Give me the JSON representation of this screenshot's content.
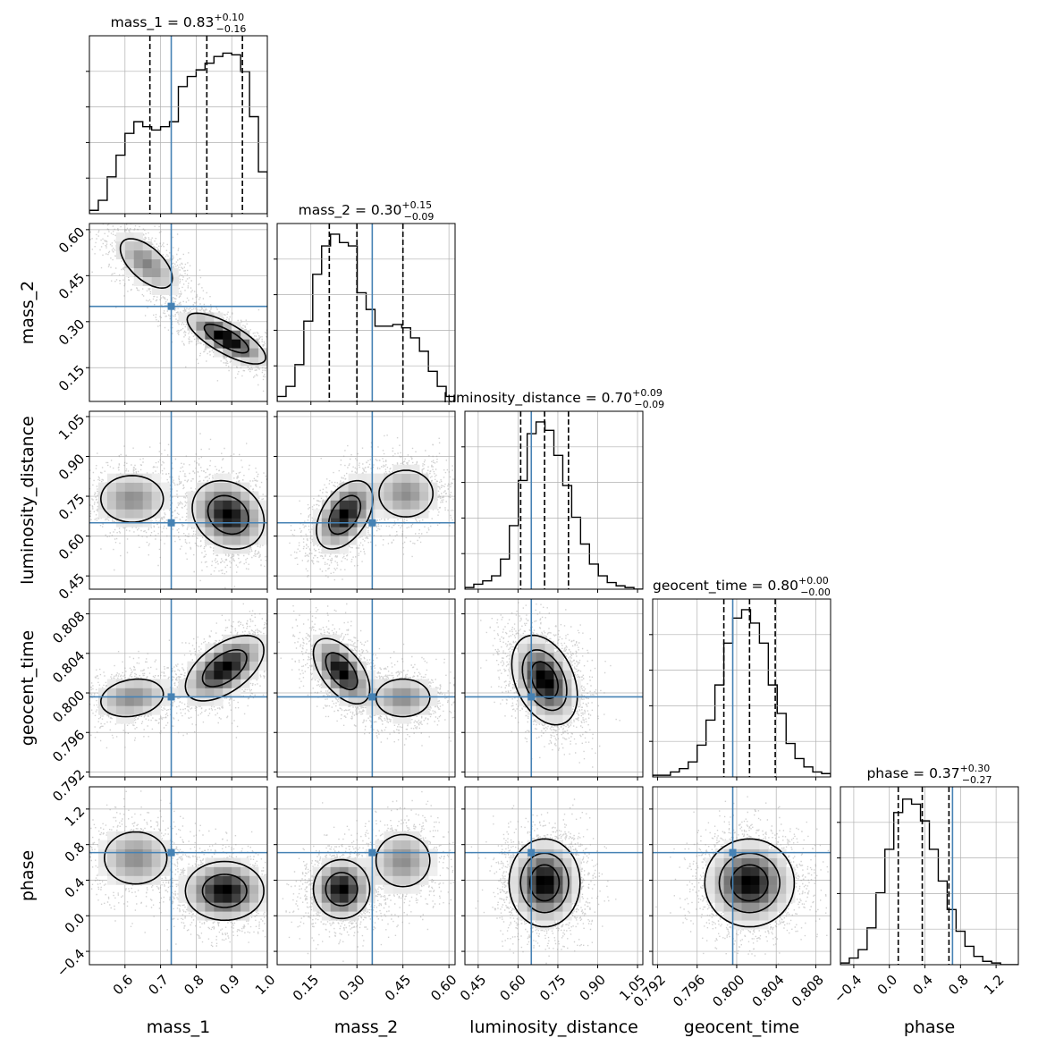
{
  "chart_data": {
    "type": "corner",
    "title": "",
    "parameters": [
      {
        "name": "mass_1",
        "xlabel": "mass_1",
        "title": {
          "prefix": "mass_1 = 0.83",
          "sup": "+0.10",
          "sub": "−0.16"
        },
        "median": 0.83,
        "err_plus": 0.1,
        "err_minus": 0.16,
        "truth": 0.73,
        "range": [
          0.5,
          1.0
        ],
        "ticks": [
          0.6,
          0.7,
          0.8,
          0.9,
          1.0
        ],
        "tick_labels": [
          "0.6",
          "0.7",
          "0.8",
          "0.9",
          "1.0"
        ],
        "quantiles": [
          0.67,
          0.83,
          0.93
        ]
      },
      {
        "name": "mass_2",
        "xlabel": "mass_2",
        "title": {
          "prefix": "mass_2 = 0.30",
          "sup": "+0.15",
          "sub": "−0.09"
        },
        "median": 0.3,
        "err_plus": 0.15,
        "err_minus": 0.09,
        "truth": 0.35,
        "range": [
          0.04,
          0.62
        ],
        "ticks": [
          0.15,
          0.3,
          0.45,
          0.6
        ],
        "tick_labels": [
          "0.15",
          "0.30",
          "0.45",
          "0.60"
        ],
        "quantiles": [
          0.21,
          0.3,
          0.45
        ]
      },
      {
        "name": "luminosity_distance",
        "xlabel": "luminosity_distance",
        "title": {
          "prefix": "luminosity_distance = 0.70",
          "sup": "+0.09",
          "sub": "−0.09"
        },
        "median": 0.7,
        "err_plus": 0.09,
        "err_minus": 0.09,
        "truth": 0.65,
        "range": [
          0.4,
          1.07
        ],
        "ticks": [
          0.45,
          0.6,
          0.75,
          0.9,
          1.05
        ],
        "tick_labels": [
          "0.45",
          "0.60",
          "0.75",
          "0.90",
          "1.05"
        ],
        "quantiles": [
          0.61,
          0.7,
          0.79
        ]
      },
      {
        "name": "geocent_time",
        "xlabel": "geocent_time",
        "title": {
          "prefix": "geocent_time = 0.80",
          "sup": "+0.00",
          "sub": "−0.00"
        },
        "median": 0.8,
        "err_plus": 0.0,
        "err_minus": 0.0,
        "truth": 0.7996,
        "range": [
          0.7915,
          0.8095
        ],
        "ticks": [
          0.792,
          0.796,
          0.8,
          0.804,
          0.808
        ],
        "tick_labels": [
          "0.792",
          "0.796",
          "0.800",
          "0.804",
          "0.808"
        ],
        "quantiles": [
          0.7987,
          0.8013,
          0.8039
        ]
      },
      {
        "name": "phase",
        "xlabel": "phase",
        "title": {
          "prefix": "phase = 0.37",
          "sup": "+0.30",
          "sub": "−0.27"
        },
        "median": 0.37,
        "err_plus": 0.3,
        "err_minus": 0.27,
        "truth": 0.71,
        "range": [
          -0.55,
          1.45
        ],
        "ticks": [
          -0.4,
          0.0,
          0.4,
          0.8,
          1.2
        ],
        "tick_labels": [
          "−0.4",
          "0.0",
          "0.4",
          "0.8",
          "1.2"
        ],
        "quantiles": [
          0.1,
          0.37,
          0.67
        ]
      }
    ],
    "histograms": {
      "mass_1": [
        0.02,
        0.08,
        0.22,
        0.35,
        0.48,
        0.55,
        0.52,
        0.5,
        0.52,
        0.55,
        0.76,
        0.82,
        0.86,
        0.9,
        0.94,
        0.96,
        0.95,
        0.85,
        0.58,
        0.25
      ],
      "mass_2": [
        0.03,
        0.09,
        0.22,
        0.48,
        0.76,
        0.93,
        1.0,
        0.95,
        0.93,
        0.65,
        0.55,
        0.45,
        0.45,
        0.46,
        0.44,
        0.38,
        0.3,
        0.18,
        0.09,
        0.03
      ],
      "luminosity_distance": [
        0.01,
        0.03,
        0.05,
        0.08,
        0.18,
        0.38,
        0.65,
        0.93,
        1.0,
        0.95,
        0.8,
        0.62,
        0.43,
        0.27,
        0.15,
        0.08,
        0.04,
        0.02,
        0.01,
        0.0
      ],
      "geocent_time": [
        0.01,
        0.01,
        0.03,
        0.05,
        0.09,
        0.19,
        0.34,
        0.55,
        0.8,
        0.95,
        1.0,
        0.92,
        0.8,
        0.55,
        0.38,
        0.2,
        0.11,
        0.06,
        0.03,
        0.02
      ],
      "phase": [
        0.01,
        0.04,
        0.09,
        0.22,
        0.43,
        0.69,
        0.91,
        0.99,
        0.96,
        0.86,
        0.69,
        0.5,
        0.33,
        0.2,
        0.11,
        0.05,
        0.02,
        0.01,
        0.0,
        0.0
      ]
    },
    "joint_modes": [
      {
        "x": "mass_1",
        "y": "mass_2",
        "modes": [
          {
            "mx": 0.885,
            "my": 0.245,
            "sx": 0.06,
            "sy": 0.045,
            "rho": -0.75,
            "w": 0.65
          },
          {
            "mx": 0.66,
            "my": 0.49,
            "sx": 0.05,
            "sy": 0.055,
            "rho": -0.6,
            "w": 0.35
          }
        ]
      },
      {
        "x": "mass_1",
        "y": "luminosity_distance",
        "modes": [
          {
            "mx": 0.89,
            "my": 0.68,
            "sx": 0.055,
            "sy": 0.07,
            "rho": -0.2,
            "w": 0.65
          },
          {
            "mx": 0.62,
            "my": 0.74,
            "sx": 0.06,
            "sy": 0.06,
            "rho": 0.0,
            "w": 0.35
          }
        ]
      },
      {
        "x": "mass_1",
        "y": "geocent_time",
        "modes": [
          {
            "mx": 0.88,
            "my": 0.8025,
            "sx": 0.06,
            "sy": 0.0018,
            "rho": 0.55,
            "w": 0.65
          },
          {
            "mx": 0.62,
            "my": 0.7995,
            "sx": 0.06,
            "sy": 0.0013,
            "rho": 0.2,
            "w": 0.35
          }
        ]
      },
      {
        "x": "mass_1",
        "y": "phase",
        "modes": [
          {
            "mx": 0.88,
            "my": 0.28,
            "sx": 0.06,
            "sy": 0.18,
            "rho": 0.0,
            "w": 0.65
          },
          {
            "mx": 0.63,
            "my": 0.65,
            "sx": 0.06,
            "sy": 0.2,
            "rho": 0.0,
            "w": 0.35
          }
        ]
      },
      {
        "x": "mass_2",
        "y": "luminosity_distance",
        "modes": [
          {
            "mx": 0.26,
            "my": 0.68,
            "sx": 0.05,
            "sy": 0.07,
            "rho": 0.45,
            "w": 0.65
          },
          {
            "mx": 0.46,
            "my": 0.76,
            "sx": 0.06,
            "sy": 0.06,
            "rho": 0.0,
            "w": 0.35
          }
        ]
      },
      {
        "x": "mass_2",
        "y": "geocent_time",
        "modes": [
          {
            "mx": 0.25,
            "my": 0.8022,
            "sx": 0.05,
            "sy": 0.0018,
            "rho": -0.55,
            "w": 0.65
          },
          {
            "mx": 0.45,
            "my": 0.7995,
            "sx": 0.06,
            "sy": 0.0013,
            "rho": 0.0,
            "w": 0.35
          }
        ]
      },
      {
        "x": "mass_2",
        "y": "phase",
        "modes": [
          {
            "mx": 0.25,
            "my": 0.3,
            "sx": 0.05,
            "sy": 0.18,
            "rho": 0.0,
            "w": 0.65
          },
          {
            "mx": 0.45,
            "my": 0.62,
            "sx": 0.06,
            "sy": 0.2,
            "rho": 0.0,
            "w": 0.35
          }
        ]
      },
      {
        "x": "luminosity_distance",
        "y": "geocent_time",
        "modes": [
          {
            "mx": 0.7,
            "my": 0.8013,
            "sx": 0.06,
            "sy": 0.0022,
            "rho": -0.35,
            "w": 1.0
          }
        ]
      },
      {
        "x": "luminosity_distance",
        "y": "phase",
        "modes": [
          {
            "mx": 0.7,
            "my": 0.37,
            "sx": 0.065,
            "sy": 0.24,
            "rho": 0.0,
            "w": 1.0
          }
        ]
      },
      {
        "x": "geocent_time",
        "y": "phase",
        "modes": [
          {
            "mx": 0.8013,
            "my": 0.37,
            "sx": 0.0022,
            "sy": 0.24,
            "rho": 0.0,
            "w": 1.0
          }
        ]
      }
    ],
    "colors": {
      "truth": "#4682b4",
      "hist": "#000000",
      "quantile": "#000000",
      "grid": "#b0b0b0",
      "density": "#000000"
    },
    "grid": true,
    "legend": "none"
  }
}
